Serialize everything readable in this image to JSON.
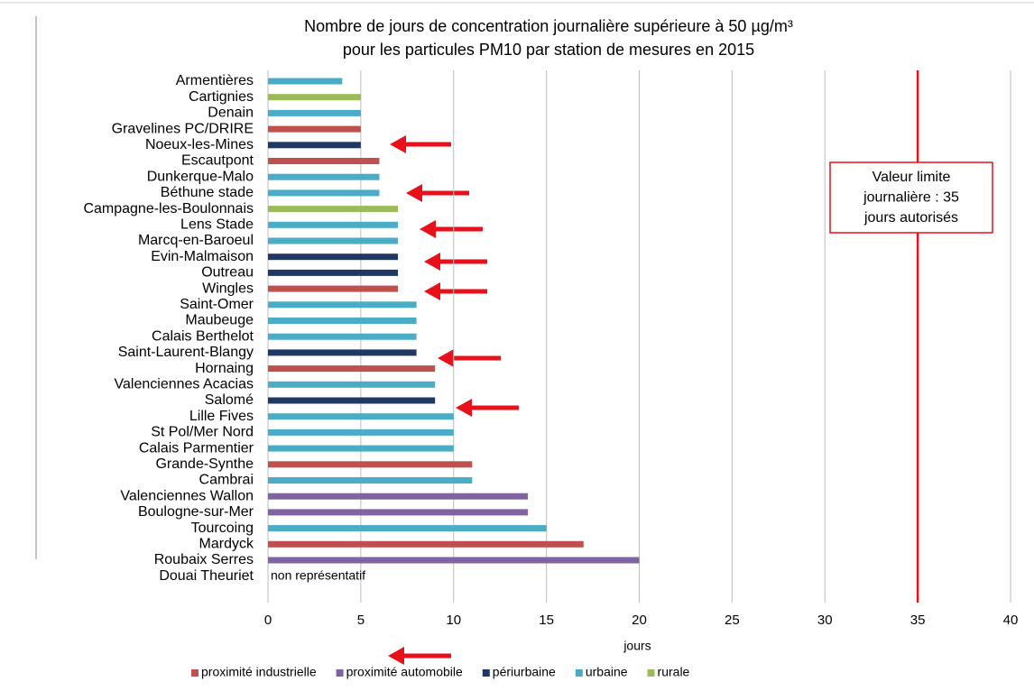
{
  "chart_data": {
    "type": "bar",
    "orientation": "horizontal",
    "title": [
      "Nombre de jours de concentration journalière supérieure à 50 µg/m³",
      "pour les particules PM10 par station de mesures en 2015"
    ],
    "x_label": "jours",
    "categories": [
      "Armentières",
      "Cartignies",
      "Denain",
      "Gravelines PC/DRIRE",
      "Noeux-les-Mines",
      "Escautpont",
      "Dunkerque-Malo",
      "Béthune stade",
      "Campagne-les-Boulonnais",
      "Lens Stade",
      "Marcq-en-Baroeul",
      "Evin-Malmaison",
      "Outreau",
      "Wingles",
      "Saint-Omer",
      "Maubeuge",
      "Calais Berthelot",
      "Saint-Laurent-Blangy",
      "Hornaing",
      "Valenciennes Acacias",
      "Salomé",
      "Lille Fives",
      "St Pol/Mer Nord",
      "Calais Parmentier",
      "Grande-Synthe",
      "Cambrai",
      "Valenciennes Wallon",
      "Boulogne-sur-Mer",
      "Tourcoing",
      "Mardyck",
      "Roubaix Serres",
      "Douai Theuriet"
    ],
    "series": [
      {
        "name": "proximité industrielle",
        "color": "#c0504d",
        "values": [
          null,
          null,
          null,
          5,
          null,
          6,
          null,
          null,
          null,
          null,
          null,
          null,
          null,
          7,
          null,
          null,
          null,
          null,
          9,
          null,
          null,
          null,
          null,
          null,
          11,
          null,
          null,
          null,
          null,
          17,
          null,
          null
        ]
      },
      {
        "name": "proximité automobile",
        "color": "#8064a2",
        "values": [
          null,
          null,
          null,
          null,
          null,
          null,
          null,
          null,
          null,
          null,
          null,
          null,
          null,
          null,
          null,
          null,
          null,
          null,
          null,
          null,
          null,
          null,
          null,
          null,
          null,
          null,
          14,
          14,
          null,
          null,
          20,
          null
        ]
      },
      {
        "name": "périurbaine",
        "color": "#1f3864",
        "values": [
          null,
          null,
          null,
          null,
          5,
          null,
          null,
          null,
          null,
          null,
          null,
          7,
          7,
          null,
          null,
          null,
          null,
          8,
          null,
          null,
          9,
          null,
          null,
          null,
          null,
          null,
          null,
          null,
          null,
          null,
          null,
          null
        ]
      },
      {
        "name": "urbaine",
        "color": "#4bacc6",
        "values": [
          4,
          null,
          5,
          null,
          null,
          null,
          6,
          6,
          null,
          7,
          7,
          null,
          null,
          null,
          8,
          8,
          8,
          null,
          null,
          9,
          null,
          10,
          10,
          10,
          null,
          11,
          null,
          null,
          15,
          null,
          null,
          null
        ]
      },
      {
        "name": "rurale",
        "color": "#9bbb59",
        "values": [
          null,
          5,
          null,
          null,
          null,
          null,
          null,
          null,
          7,
          null,
          null,
          null,
          null,
          null,
          null,
          null,
          null,
          null,
          null,
          null,
          null,
          null,
          null,
          null,
          null,
          null,
          null,
          null,
          null,
          null,
          null,
          null
        ]
      }
    ],
    "note": "non représentatif",
    "xlim": [
      0,
      40
    ],
    "xticks": [
      0,
      5,
      10,
      15,
      20,
      25,
      30,
      35,
      40
    ],
    "grid": true,
    "reference_line": {
      "value": 35,
      "color": "#e8101a"
    },
    "annotation": [
      "Valeur limite",
      "journalière : 35",
      "jours autorisés"
    ],
    "legend": "bottom"
  }
}
